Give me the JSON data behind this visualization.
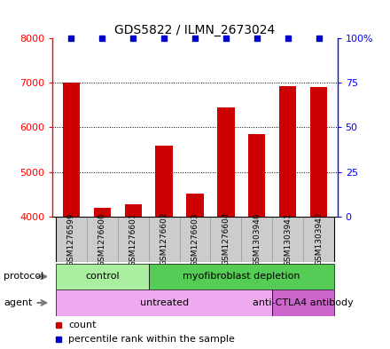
{
  "title": "GDS5822 / ILMN_2673024",
  "samples": [
    "GSM1276599",
    "GSM1276600",
    "GSM1276601",
    "GSM1276602",
    "GSM1276603",
    "GSM1276604",
    "GSM1303940",
    "GSM1303941",
    "GSM1303942"
  ],
  "counts": [
    7000,
    4200,
    4280,
    5580,
    4510,
    6440,
    5850,
    6930,
    6900
  ],
  "ylim_left": [
    4000,
    8000
  ],
  "ylim_right": [
    0,
    100
  ],
  "yticks_left": [
    4000,
    5000,
    6000,
    7000,
    8000
  ],
  "yticks_right": [
    0,
    25,
    50,
    75,
    100
  ],
  "ytick_labels_right": [
    "0",
    "25",
    "50",
    "75",
    "100%"
  ],
  "bar_color": "#cc0000",
  "dot_color": "#0000cc",
  "protocol_labels": [
    {
      "text": "control",
      "start": 0,
      "end": 3,
      "color": "#aaeea0"
    },
    {
      "text": "myofibroblast depletion",
      "start": 3,
      "end": 9,
      "color": "#55cc55"
    }
  ],
  "agent_labels": [
    {
      "text": "untreated",
      "start": 0,
      "end": 7,
      "color": "#eeaaee"
    },
    {
      "text": "anti-CTLA4 antibody",
      "start": 7,
      "end": 9,
      "color": "#cc66cc"
    }
  ],
  "legend_items": [
    {
      "color": "#cc0000",
      "label": "count"
    },
    {
      "color": "#0000cc",
      "label": "percentile rank within the sample"
    }
  ],
  "sample_bg_color": "#cccccc",
  "sample_border_color": "#999999",
  "arrow_color": "#777777"
}
